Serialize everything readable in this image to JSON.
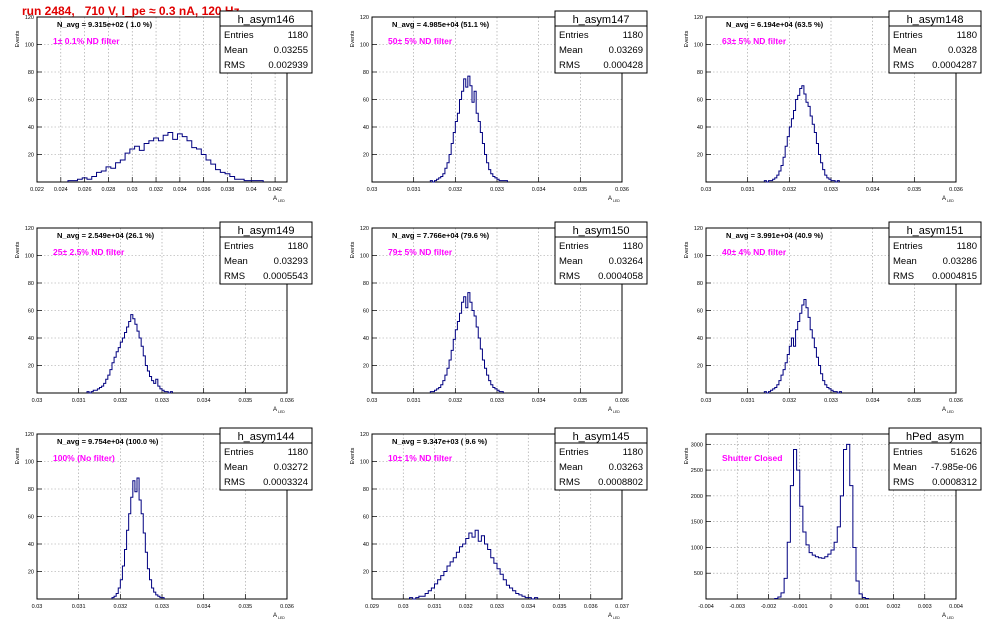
{
  "canvas_title": "run 2484,   710 V, I_pe ≈ 0.3 nA, 120 Hz",
  "colors": {
    "histogram": "#000080",
    "annotation": "#ff00ff",
    "title": "#e00000",
    "grid": "#999999"
  },
  "chart_data": [
    {
      "type": "histogram",
      "name": "h_asym146",
      "navg": "N_avg = 9.315e+02 ( 1.0 %)",
      "filter": "1± 0.1% ND filter",
      "stats": {
        "entries": "1180",
        "mean": "0.03255",
        "rms": "0.002939"
      },
      "xlim": [
        0.022,
        0.043
      ],
      "ylim": [
        0,
        120
      ],
      "xticks": [
        0.022,
        0.024,
        0.026,
        0.028,
        0.03,
        0.032,
        0.034,
        0.036,
        0.038,
        0.04,
        0.042
      ],
      "xticklabels": [
        "0.022",
        "0.024",
        "0.026",
        "0.028",
        "0.03",
        "0.032",
        "0.034",
        "0.036",
        "0.038",
        "0.04",
        "0.042"
      ],
      "yticks": [
        20,
        40,
        60,
        80,
        100,
        120
      ],
      "yticklabels": [
        "20",
        "40",
        "60",
        "80",
        "100",
        "120"
      ],
      "ylabel": "Events",
      "xlabel": "A",
      "x_start": 0.0246,
      "bin_width": 0.0004,
      "values": [
        1,
        1,
        2,
        3,
        2,
        4,
        7,
        8,
        11,
        10,
        14,
        16,
        21,
        24,
        26,
        23,
        28,
        30,
        32,
        30,
        34,
        36,
        31,
        35,
        33,
        30,
        25,
        24,
        20,
        16,
        13,
        9,
        7,
        6,
        4,
        2,
        2,
        1,
        1,
        1,
        1
      ]
    },
    {
      "type": "histogram",
      "name": "h_asym147",
      "navg": "N_avg = 4.985e+04 (51.1 %)",
      "filter": "50± 5% ND filter",
      "stats": {
        "entries": "1180",
        "mean": "0.03269",
        "rms": "0.000428"
      },
      "xlim": [
        0.03,
        0.036
      ],
      "ylim": [
        0,
        120
      ],
      "xticks": [
        0.03,
        0.031,
        0.032,
        0.033,
        0.034,
        0.035,
        0.036
      ],
      "xticklabels": [
        "0.03",
        "0.031",
        "0.032",
        "0.033",
        "0.034",
        "0.035",
        "0.036"
      ],
      "yticks": [
        20,
        40,
        60,
        80,
        100,
        120
      ],
      "yticklabels": [
        "20",
        "40",
        "60",
        "80",
        "100",
        "120"
      ],
      "ylabel": "Events",
      "xlabel": "A",
      "x_start": 0.0314,
      "bin_width": 5e-05,
      "values": [
        1,
        0,
        1,
        2,
        3,
        4,
        6,
        10,
        14,
        20,
        28,
        36,
        44,
        50,
        60,
        66,
        75,
        69,
        77,
        70,
        58,
        66,
        50,
        44,
        36,
        28,
        20,
        14,
        9,
        6,
        4,
        3,
        2,
        1,
        1,
        1,
        1
      ]
    },
    {
      "type": "histogram",
      "name": "h_asym148",
      "navg": "N_avg = 6.194e+04 (63.5 %)",
      "filter": "63± 5% ND filter",
      "stats": {
        "entries": "1180",
        "mean": "0.0328",
        "rms": "0.0004287"
      },
      "xlim": [
        0.03,
        0.036
      ],
      "ylim": [
        0,
        120
      ],
      "xticks": [
        0.03,
        0.031,
        0.032,
        0.033,
        0.034,
        0.035,
        0.036
      ],
      "xticklabels": [
        "0.03",
        "0.031",
        "0.032",
        "0.033",
        "0.034",
        "0.035",
        "0.036"
      ],
      "yticks": [
        20,
        40,
        60,
        80,
        100,
        120
      ],
      "yticklabels": [
        "20",
        "40",
        "60",
        "80",
        "100",
        "120"
      ],
      "ylabel": "Events",
      "xlabel": "A",
      "x_start": 0.0314,
      "bin_width": 5e-05,
      "values": [
        1,
        0,
        1,
        1,
        2,
        3,
        5,
        8,
        12,
        18,
        26,
        33,
        40,
        46,
        52,
        60,
        63,
        68,
        70,
        64,
        58,
        55,
        48,
        42,
        36,
        28,
        20,
        14,
        9,
        5,
        3,
        2,
        1,
        1,
        0,
        1
      ]
    },
    {
      "type": "histogram",
      "name": "h_asym149",
      "navg": "N_avg = 2.549e+04 (26.1 %)",
      "filter": "25± 2.5% ND filter",
      "stats": {
        "entries": "1180",
        "mean": "0.03293",
        "rms": "0.0005543"
      },
      "xlim": [
        0.03,
        0.036
      ],
      "ylim": [
        0,
        120
      ],
      "xticks": [
        0.03,
        0.031,
        0.032,
        0.033,
        0.034,
        0.035,
        0.036
      ],
      "xticklabels": [
        "0.03",
        "0.031",
        "0.032",
        "0.033",
        "0.034",
        "0.035",
        "0.036"
      ],
      "yticks": [
        20,
        40,
        60,
        80,
        100,
        120
      ],
      "yticklabels": [
        "20",
        "40",
        "60",
        "80",
        "100",
        "120"
      ],
      "ylabel": "Events",
      "xlabel": "A",
      "x_start": 0.0312,
      "bin_width": 5e-05,
      "values": [
        1,
        0,
        1,
        2,
        2,
        3,
        4,
        5,
        7,
        10,
        13,
        17,
        22,
        26,
        30,
        33,
        37,
        40,
        44,
        48,
        52,
        57,
        54,
        50,
        45,
        40,
        34,
        27,
        20,
        16,
        12,
        9,
        7,
        10,
        5,
        3,
        2,
        1,
        1,
        0,
        1
      ]
    },
    {
      "type": "histogram",
      "name": "h_asym150",
      "navg": "N_avg = 7.766e+04 (79.6 %)",
      "filter": "79± 5% ND filter",
      "stats": {
        "entries": "1180",
        "mean": "0.03264",
        "rms": "0.0004058"
      },
      "xlim": [
        0.03,
        0.036
      ],
      "ylim": [
        0,
        120
      ],
      "xticks": [
        0.03,
        0.031,
        0.032,
        0.033,
        0.034,
        0.035,
        0.036
      ],
      "xticklabels": [
        "0.03",
        "0.031",
        "0.032",
        "0.033",
        "0.034",
        "0.035",
        "0.036"
      ],
      "yticks": [
        20,
        40,
        60,
        80,
        100,
        120
      ],
      "yticklabels": [
        "20",
        "40",
        "60",
        "80",
        "100",
        "120"
      ],
      "ylabel": "Events",
      "xlabel": "A",
      "x_start": 0.0314,
      "bin_width": 5e-05,
      "values": [
        1,
        1,
        2,
        3,
        4,
        6,
        9,
        13,
        18,
        24,
        31,
        39,
        46,
        52,
        58,
        66,
        70,
        62,
        73,
        66,
        60,
        56,
        48,
        40,
        32,
        24,
        18,
        13,
        9,
        6,
        4,
        3,
        2,
        1,
        1
      ]
    },
    {
      "type": "histogram",
      "name": "h_asym151",
      "navg": "N_avg = 3.991e+04 (40.9 %)",
      "filter": "40± 4% ND filter",
      "stats": {
        "entries": "1180",
        "mean": "0.03286",
        "rms": "0.0004815"
      },
      "xlim": [
        0.03,
        0.036
      ],
      "ylim": [
        0,
        120
      ],
      "xticks": [
        0.03,
        0.031,
        0.032,
        0.033,
        0.034,
        0.035,
        0.036
      ],
      "xticklabels": [
        "0.03",
        "0.031",
        "0.032",
        "0.033",
        "0.034",
        "0.035",
        "0.036"
      ],
      "yticks": [
        20,
        40,
        60,
        80,
        100,
        120
      ],
      "yticklabels": [
        "20",
        "40",
        "60",
        "80",
        "100",
        "120"
      ],
      "ylabel": "Events",
      "xlabel": "A",
      "x_start": 0.0314,
      "bin_width": 5e-05,
      "values": [
        1,
        0,
        1,
        2,
        3,
        4,
        6,
        9,
        13,
        17,
        22,
        28,
        34,
        40,
        34,
        46,
        52,
        58,
        64,
        68,
        62,
        55,
        46,
        40,
        33,
        26,
        20,
        14,
        9,
        6,
        4,
        3,
        2,
        1,
        1,
        0,
        1
      ]
    },
    {
      "type": "histogram",
      "name": "h_asym144",
      "navg": "N_avg = 9.754e+04 (100.0 %)",
      "filter": "100% (No filter)",
      "stats": {
        "entries": "1180",
        "mean": "0.03272",
        "rms": "0.0003324"
      },
      "xlim": [
        0.03,
        0.036
      ],
      "ylim": [
        0,
        120
      ],
      "xticks": [
        0.03,
        0.031,
        0.032,
        0.033,
        0.034,
        0.035,
        0.036
      ],
      "xticklabels": [
        "0.03",
        "0.031",
        "0.032",
        "0.033",
        "0.034",
        "0.035",
        "0.036"
      ],
      "yticks": [
        20,
        40,
        60,
        80,
        100,
        120
      ],
      "yticklabels": [
        "20",
        "40",
        "60",
        "80",
        "100",
        "120"
      ],
      "ylabel": "Events",
      "xlabel": "A",
      "x_start": 0.0318,
      "bin_width": 5e-05,
      "values": [
        1,
        2,
        4,
        8,
        14,
        24,
        36,
        50,
        62,
        74,
        86,
        78,
        88,
        72,
        62,
        48,
        34,
        22,
        14,
        8,
        5,
        3,
        2,
        1,
        1
      ]
    },
    {
      "type": "histogram",
      "name": "h_asym145",
      "navg": "N_avg = 9.347e+03 ( 9.6 %)",
      "filter": "10± 1% ND filter",
      "stats": {
        "entries": "1180",
        "mean": "0.03263",
        "rms": "0.0008802"
      },
      "xlim": [
        0.029,
        0.037
      ],
      "ylim": [
        0,
        120
      ],
      "xticks": [
        0.029,
        0.03,
        0.031,
        0.032,
        0.033,
        0.034,
        0.035,
        0.036,
        0.037
      ],
      "xticklabels": [
        "0.029",
        "0.03",
        "0.031",
        "0.032",
        "0.033",
        "0.034",
        "0.035",
        "0.036",
        "0.037"
      ],
      "yticks": [
        20,
        40,
        60,
        80,
        100,
        120
      ],
      "yticklabels": [
        "20",
        "40",
        "60",
        "80",
        "100",
        "120"
      ],
      "ylabel": "Events",
      "xlabel": "A",
      "x_start": 0.0302,
      "bin_width": 0.0001,
      "values": [
        1,
        0,
        1,
        2,
        2,
        4,
        6,
        8,
        11,
        14,
        17,
        20,
        24,
        27,
        30,
        34,
        38,
        40,
        44,
        48,
        45,
        50,
        42,
        46,
        40,
        36,
        30,
        26,
        22,
        18,
        14,
        10,
        8,
        6,
        4,
        3,
        2,
        1,
        1,
        0,
        1
      ]
    },
    {
      "type": "histogram",
      "name": "hPed_asym",
      "navg": "",
      "filter": "Shutter Closed",
      "stats": {
        "entries": "51626",
        "mean": "-7.985e-06",
        "rms": "0.0008312"
      },
      "xlim": [
        -0.004,
        0.004
      ],
      "ylim": [
        0,
        3200
      ],
      "xticks": [
        -0.004,
        -0.003,
        -0.002,
        -0.001,
        0,
        0.001,
        0.002,
        0.003,
        0.004
      ],
      "xticklabels": [
        "-0.004",
        "-0.003",
        "-0.002",
        "-0.001",
        "0",
        "0.001",
        "0.002",
        "0.003",
        "0.004"
      ],
      "yticks": [
        500,
        1000,
        1500,
        2000,
        2500,
        3000
      ],
      "yticklabels": [
        "500",
        "1000",
        "1500",
        "2000",
        "2500",
        "3000"
      ],
      "ylabel": "Events",
      "xlabel": "A",
      "x_start": -0.0018,
      "bin_width": 0.0001,
      "values": [
        10,
        40,
        120,
        400,
        1100,
        2200,
        2900,
        2500,
        1800,
        1300,
        1050,
        900,
        850,
        820,
        800,
        790,
        820,
        870,
        950,
        1100,
        1400,
        2000,
        2900,
        3000,
        2200,
        1000,
        350,
        100,
        30,
        10
      ]
    }
  ]
}
